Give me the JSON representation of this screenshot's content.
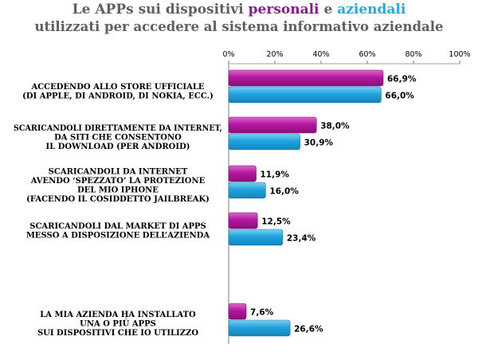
{
  "title": {
    "line1_a": "Le APPs sui dispositivi ",
    "line1_personali": "personali",
    "line1_b": " e ",
    "line1_aziendali": "aziendali",
    "line2": "utilizzati per accedere al sistema informativo aziendale"
  },
  "colors": {
    "personali": "#b5179e",
    "aziendali": "#1fa3df",
    "title_personali": "#8b1a8b",
    "title_aziendali": "#2aa6e0"
  },
  "chart_data": {
    "type": "bar",
    "orientation": "horizontal",
    "xlim": [
      0,
      100
    ],
    "ticks": [
      "0%",
      "20%",
      "40%",
      "60%",
      "80%",
      "100%"
    ],
    "grid": false,
    "categories": [
      [
        "ACCEDENDO ALLO STORE UFFICIALE",
        "(DI APPLE, DI ANDROID, DI NOKIA, ECC.)"
      ],
      [
        "SCARICANDOLI DIRETTAMENTE DA INTERNET,",
        "DA SITI CHE CONSENTONO",
        "IL DOWNLOAD (PER ANDROID)"
      ],
      [
        "SCARICANDOLI DA INTERNET",
        "AVENDO ‘SPEZZATO’ LA PROTEZIONE",
        "DEL MIO IPHONE",
        "(FACENDO IL COSIDDETTO JAILBREAK)"
      ],
      [
        "SCARICANDOLI DAL MARKET DI APPS",
        "MESSO A DISPOSIZIONE DELL’AZIENDA"
      ],
      [
        ""
      ],
      [
        "LA MIA AZIENDA HA INSTALLATO",
        "UNA O PIÙ APPS",
        "SUI DISPOSITIVI CHE IO UTILIZZO"
      ]
    ],
    "series": [
      {
        "name": "personali",
        "values": [
          66.9,
          38.0,
          11.9,
          12.5,
          null,
          7.6
        ],
        "labels": [
          "66,9%",
          "38,0%",
          "11,9%",
          "12,5%",
          "",
          "7,6%"
        ]
      },
      {
        "name": "aziendali",
        "values": [
          66.0,
          30.9,
          16.0,
          23.4,
          null,
          26.6
        ],
        "labels": [
          "66,0%",
          "30,9%",
          "16,0%",
          "23,4%",
          "",
          "26,6%"
        ]
      }
    ]
  }
}
